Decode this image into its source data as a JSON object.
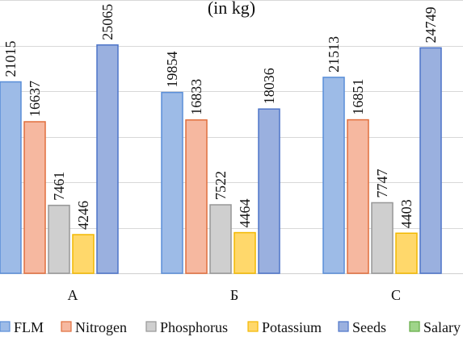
{
  "chart_data": {
    "type": "bar",
    "title": "(in kg)",
    "categories": [
      "A",
      "Б",
      "C"
    ],
    "series": [
      {
        "name": "FLM",
        "values": [
          21015,
          19854,
          21513
        ],
        "fill": "#9dbbe7",
        "stroke": "#5a8ed8"
      },
      {
        "name": "Nitrogen",
        "values": [
          16637,
          16833,
          16851
        ],
        "fill": "#f6b8a0",
        "stroke": "#e16f3d"
      },
      {
        "name": "Phosphorus",
        "values": [
          7461,
          7522,
          7747
        ],
        "fill": "#cfcfcf",
        "stroke": "#979797"
      },
      {
        "name": "Potassium",
        "values": [
          4246,
          4464,
          4403
        ],
        "fill": "#ffd86b",
        "stroke": "#f2b800"
      },
      {
        "name": "Seeds",
        "values": [
          25065,
          18036,
          24749
        ],
        "fill": "#9ab0df",
        "stroke": "#4d74c8"
      },
      {
        "name": "Salary",
        "values": [
          null,
          null,
          null
        ],
        "fill": "#9fd58a",
        "stroke": "#62aa43"
      }
    ],
    "ylim": [
      0,
      30000
    ],
    "grid": true,
    "legend": "bottom",
    "data_labels": true
  }
}
